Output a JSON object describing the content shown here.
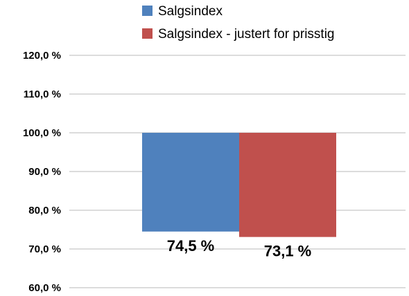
{
  "chart_data": {
    "type": "bar",
    "baseline": 100,
    "categories": [
      ""
    ],
    "series": [
      {
        "name": "Salgsindex",
        "values": [
          74.5
        ],
        "color": "#4F81BD",
        "label": "74,5 %"
      },
      {
        "name": "Salgsindex - justert for prisstig",
        "values": [
          73.1
        ],
        "color": "#C0504D",
        "label": "73,1 %"
      }
    ],
    "ylim": [
      60,
      120
    ],
    "yticks": [
      60,
      70,
      80,
      90,
      100,
      110,
      120
    ],
    "ytick_labels": [
      "60,0 %",
      "70,0 %",
      "80,0 %",
      "90,0 %",
      "100,0 %",
      "110,0 %",
      "120,0 %"
    ],
    "grid": true,
    "legend_position": "top"
  }
}
